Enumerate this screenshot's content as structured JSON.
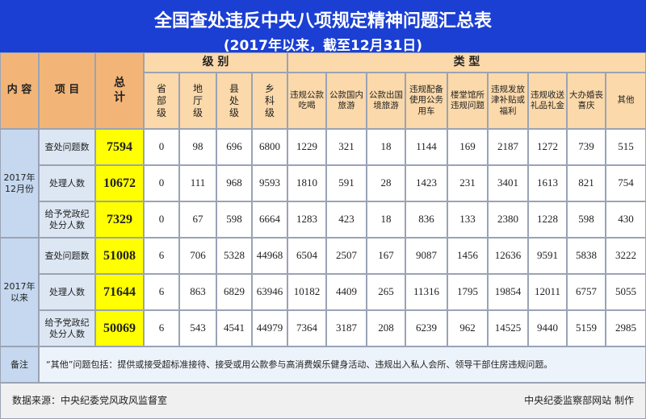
{
  "header": {
    "title": "全国查处违反中央八项规定精神问题汇总表",
    "subtitle": "(2017年以来，截至12月31日)"
  },
  "table": {
    "head": {
      "content": "内 容",
      "item": "项 目",
      "total": "总计",
      "level_group": "级 别",
      "levels": [
        "省部级",
        "地厅级",
        "县处级",
        "乡科级"
      ],
      "type_group": "类 型",
      "types": [
        "违规公款吃喝",
        "公款国内旅游",
        "公款出国境旅游",
        "违规配备使用公务用车",
        "楼堂馆所违规问题",
        "违规发放津补贴或福利",
        "违规收送礼品礼金",
        "大办婚丧喜庆",
        "其他"
      ]
    },
    "groups": [
      {
        "label": "2017年12月份",
        "rows": [
          {
            "item": "查处问题数",
            "total": 7594,
            "levels": [
              0,
              98,
              696,
              6800
            ],
            "types": [
              1229,
              321,
              18,
              1144,
              169,
              2187,
              1272,
              739,
              515
            ]
          },
          {
            "item": "处理人数",
            "total": 10672,
            "levels": [
              0,
              111,
              968,
              9593
            ],
            "types": [
              1810,
              591,
              28,
              1423,
              231,
              3401,
              1613,
              821,
              754
            ]
          },
          {
            "item": "给予党政纪处分人数",
            "total": 7329,
            "levels": [
              0,
              67,
              598,
              6664
            ],
            "types": [
              1283,
              423,
              18,
              836,
              133,
              2380,
              1228,
              598,
              430
            ]
          }
        ]
      },
      {
        "label": "2017年以来",
        "rows": [
          {
            "item": "查处问题数",
            "total": 51008,
            "levels": [
              6,
              706,
              5328,
              44968
            ],
            "types": [
              6504,
              2507,
              167,
              9087,
              1456,
              12636,
              9591,
              5838,
              3222
            ]
          },
          {
            "item": "处理人数",
            "total": 71644,
            "levels": [
              6,
              863,
              6829,
              63946
            ],
            "types": [
              10182,
              4409,
              265,
              11316,
              1795,
              19854,
              12011,
              6757,
              5055
            ]
          },
          {
            "item": "给予党政纪处分人数",
            "total": 50069,
            "levels": [
              6,
              543,
              4541,
              44979
            ],
            "types": [
              7364,
              3187,
              208,
              6239,
              962,
              14525,
              9440,
              5159,
              2985
            ]
          }
        ]
      }
    ],
    "note": {
      "label": "备注",
      "text": "“其他”问题包括：提供或接受超标准接待、接受或用公款参与高消费娱乐健身活动、违规出入私人会所、领导干部住房违规问题。"
    }
  },
  "footer": {
    "source": "数据来源：中央纪委党风政风监督室",
    "credit": "中央纪委监察部网站 制作"
  }
}
